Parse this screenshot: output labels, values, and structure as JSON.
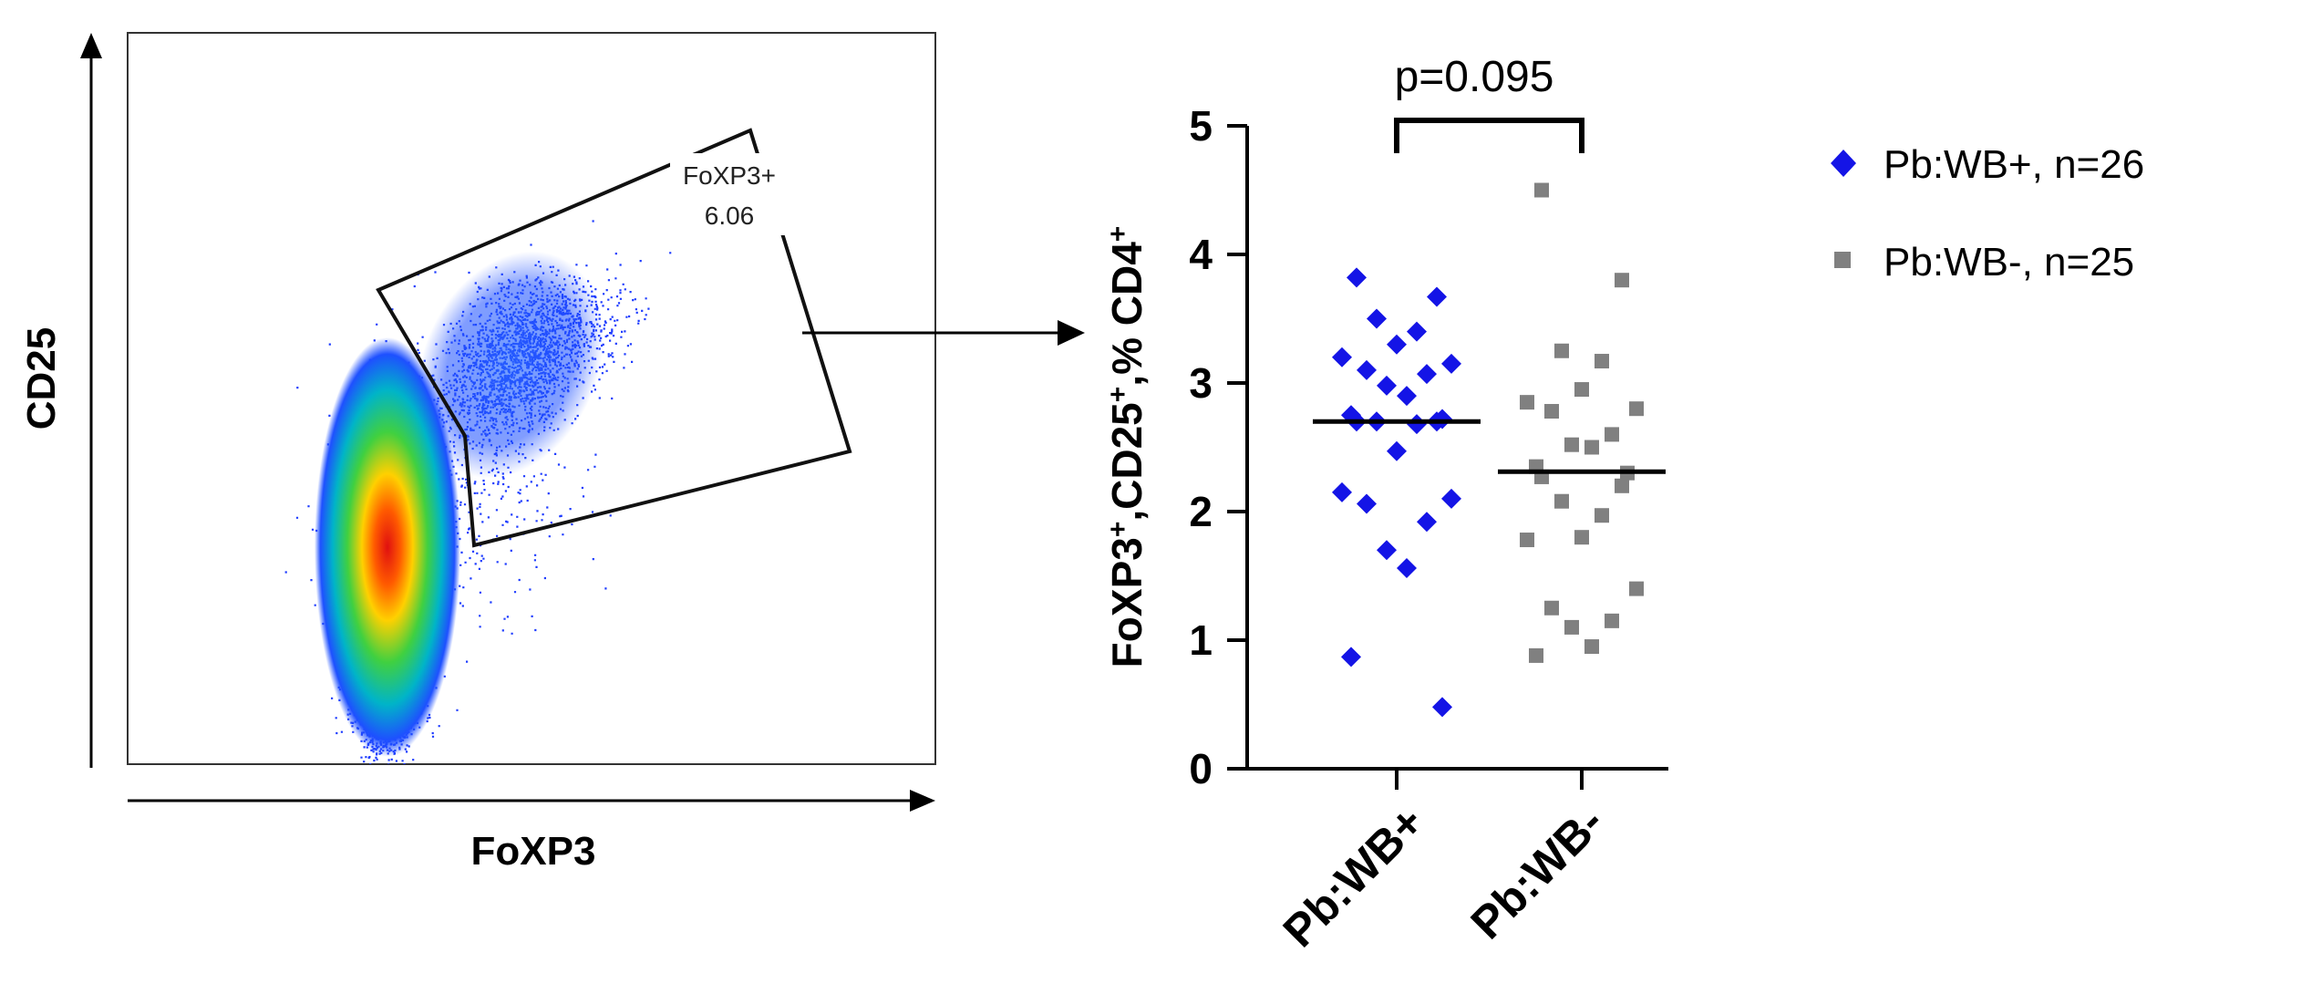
{
  "flow_plot": {
    "x_label": "FoXP3",
    "y_label": "CD25",
    "gate_name": "FoXP3+",
    "gate_value": "6.06"
  },
  "chart_data": {
    "type": "scatter",
    "ylabel_parts": [
      "FoXP3",
      "+",
      ",CD25",
      "+",
      ",% CD4",
      "+"
    ],
    "ylim": [
      0,
      5
    ],
    "yticks": [
      0,
      1,
      2,
      3,
      4,
      5
    ],
    "categories": [
      "Pb:WB+",
      "Pb:WB-"
    ],
    "annotation": "p=0.095",
    "series": [
      {
        "name": "Pb:WB+, n=26",
        "category": "Pb:WB+",
        "color": "#1414e6",
        "marker": "diamond",
        "median": 2.7,
        "values": [
          3.82,
          3.67,
          3.5,
          3.4,
          3.3,
          3.2,
          3.15,
          3.1,
          3.07,
          2.98,
          2.9,
          2.75,
          2.72,
          2.7,
          2.7,
          2.7,
          2.68,
          2.47,
          2.15,
          2.1,
          2.06,
          1.92,
          1.7,
          1.56,
          0.87,
          0.48
        ]
      },
      {
        "name": "Pb:WB-, n=25",
        "category": "Pb:WB-",
        "color": "#808080",
        "marker": "square",
        "median": 2.31,
        "values": [
          4.5,
          3.8,
          3.25,
          3.17,
          2.95,
          2.85,
          2.8,
          2.78,
          2.6,
          2.52,
          2.5,
          2.35,
          2.3,
          2.27,
          2.2,
          2.08,
          1.97,
          1.8,
          1.78,
          1.4,
          1.25,
          1.15,
          1.1,
          0.95,
          0.88
        ]
      }
    ]
  }
}
